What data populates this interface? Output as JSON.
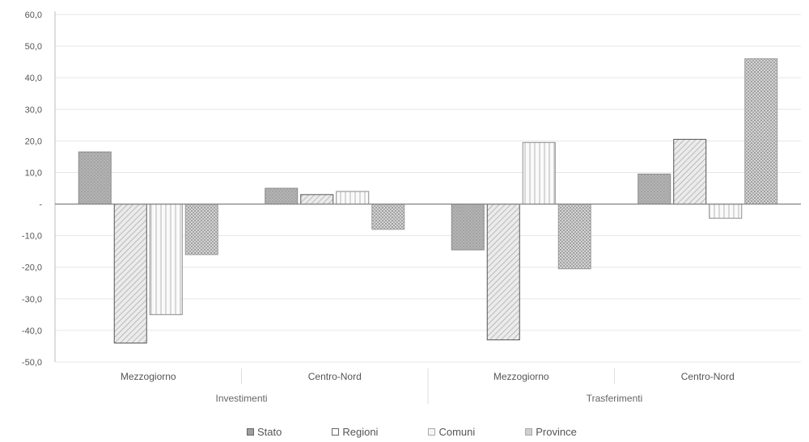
{
  "chart_data": {
    "type": "bar",
    "title": "",
    "xlabel": "",
    "ylabel": "",
    "ylim": [
      -50,
      60
    ],
    "yticks": [
      "60,0",
      "50,0",
      "40,0",
      "30,0",
      "20,0",
      "10,0",
      "-",
      "-10,0",
      "-20,0",
      "-30,0",
      "-40,0",
      "-50,0"
    ],
    "groups": [
      {
        "label": "Investimenti",
        "categories": [
          "Mezzogiorno",
          "Centro-Nord"
        ]
      },
      {
        "label": "Trasferimenti",
        "categories": [
          "Mezzogiorno",
          "Centro-Nord"
        ]
      }
    ],
    "categories": [
      "Mezzogiorno",
      "Centro-Nord",
      "Mezzogiorno",
      "Centro-Nord"
    ],
    "series": [
      {
        "name": "Stato",
        "values": [
          16.5,
          5.0,
          -14.5,
          9.5
        ]
      },
      {
        "name": "Regioni",
        "values": [
          -44.0,
          3.0,
          -43.0,
          20.5
        ]
      },
      {
        "name": "Comuni",
        "values": [
          -35.0,
          4.0,
          19.5,
          -4.5
        ]
      },
      {
        "name": "Province",
        "values": [
          -16.0,
          -8.0,
          -20.5,
          46.0
        ]
      }
    ],
    "grid": true,
    "legend_position": "bottom"
  },
  "colors": {
    "stato": "#aaaaaa",
    "regioni": "#dcdcdc",
    "comuni": "#f3f3f3",
    "province": "#b9b9b9",
    "grid": "#e6e6e6",
    "axis": "#888888"
  }
}
